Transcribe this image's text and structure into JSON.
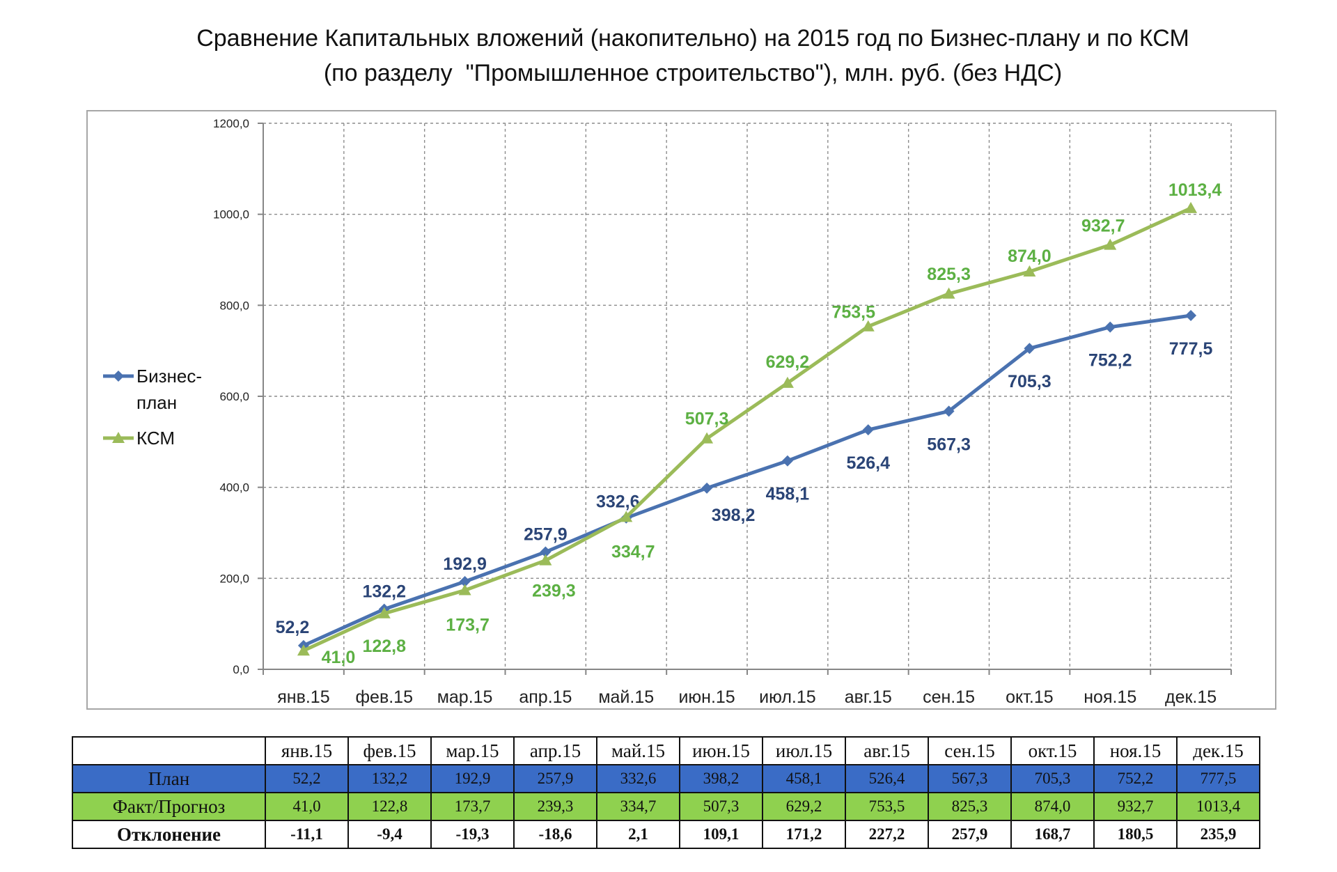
{
  "title_line1": "Сравнение Капитальных вложений (накопительно) на 2015 год по Бизнес-плану и по КСМ",
  "title_line2": "(по разделу  \"Промышленное строительство\"), млн. руб. (без НДС)",
  "chart_data": {
    "type": "line",
    "title": "Сравнение Капитальных вложений (накопительно) на 2015 год по Бизнес-плану и по КСМ (по разделу \"Промышленное строительство\"), млн. руб. (без НДС)",
    "categories": [
      "янв.15",
      "фев.15",
      "мар.15",
      "апр.15",
      "май.15",
      "июн.15",
      "июл.15",
      "авг.15",
      "сен.15",
      "окт.15",
      "ноя.15",
      "дек.15"
    ],
    "ylim": [
      0,
      1200
    ],
    "yticks": [
      "0,0",
      "200,0",
      "400,0",
      "600,0",
      "800,0",
      "1000,0",
      "1200,0"
    ],
    "ytick_values": [
      0,
      200,
      400,
      600,
      800,
      1000,
      1200
    ],
    "grid": true,
    "legend_position": "left",
    "series": [
      {
        "name": "Бизнес-план",
        "legend_lines": [
          "Бизнес-",
          "план"
        ],
        "color": "#4a72b0",
        "label_color": "#2a4476",
        "marker": "diamond",
        "values": [
          52.2,
          132.2,
          192.9,
          257.9,
          332.6,
          398.2,
          458.1,
          526.4,
          567.3,
          705.3,
          752.2,
          777.5
        ],
        "labels": [
          "52,2",
          "132,2",
          "192,9",
          "257,9",
          "332,6",
          "398,2",
          "458,1",
          "526,4",
          "567,3",
          "705,3",
          "752,2",
          "777,5"
        ]
      },
      {
        "name": "КСМ",
        "legend_lines": [
          "КСМ"
        ],
        "color": "#9bbb59",
        "label_color": "#5cb043",
        "marker": "triangle",
        "values": [
          41.0,
          122.8,
          173.7,
          239.3,
          334.7,
          507.3,
          629.2,
          753.5,
          825.3,
          874.0,
          932.7,
          1013.4
        ],
        "labels": [
          "41,0",
          "122,8",
          "173,7",
          "239,3",
          "334,7",
          "507,3",
          "629,2",
          "753,5",
          "825,3",
          "874,0",
          "932,7",
          "1013,4"
        ]
      }
    ]
  },
  "table": {
    "columns": [
      "янв.15",
      "фев.15",
      "мар.15",
      "апр.15",
      "май.15",
      "июн.15",
      "июл.15",
      "авг.15",
      "сен.15",
      "окт.15",
      "ноя.15",
      "дек.15"
    ],
    "rows": [
      {
        "label": "План",
        "values": [
          "52,2",
          "132,2",
          "192,9",
          "257,9",
          "332,6",
          "398,2",
          "458,1",
          "526,4",
          "567,3",
          "705,3",
          "752,2",
          "777,5"
        ]
      },
      {
        "label": "Факт/Прогноз",
        "values": [
          "41,0",
          "122,8",
          "173,7",
          "239,3",
          "334,7",
          "507,3",
          "629,2",
          "753,5",
          "825,3",
          "874,0",
          "932,7",
          "1013,4"
        ]
      },
      {
        "label": "Отклонение",
        "values": [
          "-11,1",
          "-9,4",
          "-19,3",
          "-18,6",
          "2,1",
          "109,1",
          "171,2",
          "227,2",
          "257,9",
          "168,7",
          "180,5",
          "235,9"
        ]
      }
    ]
  }
}
